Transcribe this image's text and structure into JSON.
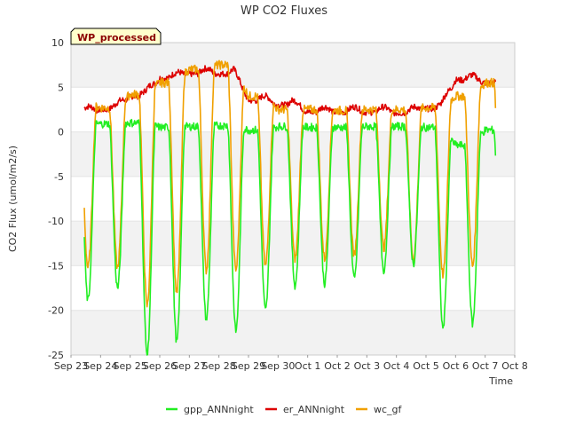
{
  "chart_data": {
    "type": "line",
    "title": "WP CO2 Fluxes",
    "badge": "WP_processed",
    "xlabel": "Time",
    "ylabel": "CO2 Flux (umol/m2/s)",
    "ylim": [
      -25,
      10
    ],
    "xlim": [
      0,
      15
    ],
    "yticks": [
      -25,
      -20,
      -15,
      -10,
      -5,
      0,
      5,
      10
    ],
    "x_ticks": [
      {
        "x": 0,
        "label": "Sep 23"
      },
      {
        "x": 1,
        "label": "Sep 24"
      },
      {
        "x": 2,
        "label": "Sep 25"
      },
      {
        "x": 3,
        "label": "Sep 26"
      },
      {
        "x": 4,
        "label": "Sep 27"
      },
      {
        "x": 5,
        "label": "Sep 28"
      },
      {
        "x": 6,
        "label": "Sep 29"
      },
      {
        "x": 7,
        "label": "Sep 30"
      },
      {
        "x": 8,
        "label": "Oct 1"
      },
      {
        "x": 9,
        "label": "Oct 2"
      },
      {
        "x": 10,
        "label": "Oct 3"
      },
      {
        "x": 11,
        "label": "Oct 4"
      },
      {
        "x": 12,
        "label": "Oct 5"
      },
      {
        "x": 13,
        "label": "Oct 6"
      },
      {
        "x": 14,
        "label": "Oct 7"
      },
      {
        "x": 15,
        "label": "Oct 8"
      }
    ],
    "x_start": 0.45,
    "x_end": 14.35,
    "series": [
      {
        "name": "gpp_ANNnight",
        "color": "#22ee22",
        "night": [
          0.8,
          0.9,
          1.0,
          0.5,
          0.6,
          0.7,
          0.2,
          0.6,
          0.5,
          0.5,
          0.6,
          0.6,
          0.5,
          -1.5,
          0.2
        ],
        "trough": [
          -18.9,
          -17.5,
          -25.0,
          -23.5,
          -21.0,
          -22.3,
          -20.0,
          -17.2,
          -17.0,
          -16.5,
          -15.5,
          -14.8,
          -22.0,
          -21.5
        ]
      },
      {
        "name": "er_ANNnight",
        "color": "#dd0000",
        "night": [
          2.2,
          2.5,
          4.0,
          6.0,
          6.5,
          6.5,
          3.5,
          3.0,
          2.2,
          2.2,
          2.2,
          2.1,
          2.6,
          5.8,
          5.5
        ]
      },
      {
        "name": "wc_gf",
        "color": "#f0a000",
        "night": [
          3.0,
          2.7,
          4.2,
          5.5,
          7.0,
          7.5,
          4.0,
          2.5,
          2.5,
          2.4,
          2.5,
          2.5,
          2.7,
          4.0,
          5.5
        ],
        "trough": [
          -15.2,
          -15.2,
          -19.5,
          -18.0,
          -15.5,
          -15.5,
          -15.0,
          -14.2,
          -14.2,
          -13.8,
          -13.0,
          -14.3,
          -16.0,
          -15.0
        ]
      }
    ]
  }
}
